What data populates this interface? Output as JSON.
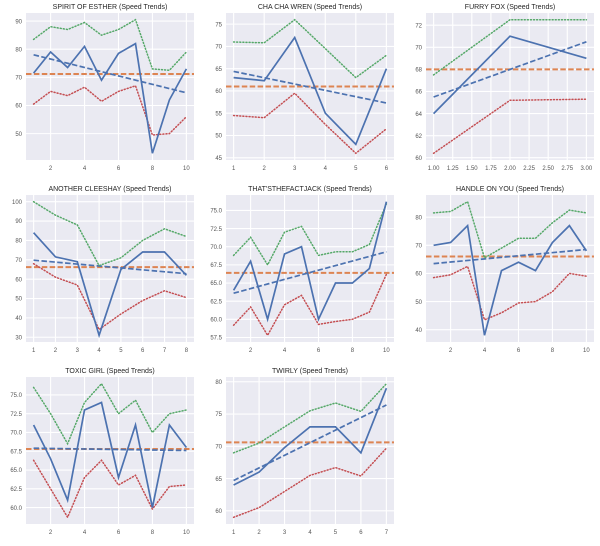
{
  "figure": {
    "layout": "3x3-grid-8-charts",
    "background": "#ffffff"
  },
  "palette": {
    "speed": "#4c72b0",
    "trend": "#4c72b0",
    "upper_bound": "#55a868",
    "lower_bound": "#c44e52",
    "average": "#dd8452",
    "plot_background": "#eaeaf2",
    "gridline": "#ffffff",
    "title_text": "#262626",
    "tick_text": "#555555"
  },
  "chart_data": [
    {
      "type": "line",
      "title": "SPIRIT OF ESTHER (Speed Trends)",
      "x": [
        1,
        2,
        3,
        4,
        5,
        6,
        7,
        8,
        9,
        10
      ],
      "xticks": {
        "values": [
          2,
          4,
          6,
          8,
          10
        ],
        "labels": [
          "2",
          "4",
          "6",
          "8",
          "10"
        ]
      },
      "yticks": {
        "values": [
          50,
          60,
          70,
          80,
          90
        ],
        "labels": [
          "50",
          "60",
          "70",
          "80",
          "90"
        ]
      },
      "series": [
        {
          "name": "speed",
          "style": "solid",
          "color": "speed",
          "values": [
            71.5,
            79,
            73.5,
            81,
            69,
            78.5,
            82,
            43,
            62,
            73
          ]
        },
        {
          "name": "trend",
          "style": "dashed",
          "color": "trend",
          "endpoints": [
            78,
            64.5
          ]
        },
        {
          "name": "upper-bound",
          "style": "dotted",
          "color": "upper_bound",
          "values": [
            83.5,
            88,
            87,
            89.5,
            85,
            87,
            90.5,
            73,
            72.5,
            79
          ]
        },
        {
          "name": "lower-bound",
          "style": "dotted",
          "color": "lower_bound",
          "values": [
            60.5,
            65,
            63.5,
            66.5,
            61.5,
            65,
            67,
            49.5,
            50,
            56
          ]
        },
        {
          "name": "average",
          "style": "dashed",
          "color": "average",
          "constant": 71.2
        }
      ]
    },
    {
      "type": "line",
      "title": "CHA CHA WREN (Speed Trends)",
      "x": [
        1,
        2,
        3,
        4,
        5,
        6
      ],
      "xticks": {
        "values": [
          1,
          2,
          3,
          4,
          5,
          6
        ],
        "labels": [
          "1",
          "2",
          "3",
          "4",
          "5",
          "6"
        ]
      },
      "yticks": {
        "values": [
          45,
          50,
          55,
          60,
          65,
          70,
          75
        ],
        "labels": [
          "45",
          "50",
          "55",
          "60",
          "65",
          "70",
          "75"
        ]
      },
      "series": [
        {
          "name": "speed",
          "style": "solid",
          "color": "speed",
          "values": [
            63,
            62.3,
            72,
            55,
            48,
            65
          ]
        },
        {
          "name": "trend",
          "style": "dashed",
          "color": "trend",
          "endpoints": [
            64.4,
            57.3
          ]
        },
        {
          "name": "upper-bound",
          "style": "dotted",
          "color": "upper_bound",
          "values": [
            71,
            70.8,
            76,
            69.5,
            63,
            68
          ]
        },
        {
          "name": "lower-bound",
          "style": "dotted",
          "color": "lower_bound",
          "values": [
            54.5,
            54,
            59.5,
            52.5,
            46,
            51.5
          ]
        },
        {
          "name": "average",
          "style": "dashed",
          "color": "average",
          "constant": 61
        }
      ]
    },
    {
      "type": "line",
      "title": "FURRY FOX (Speed Trends)",
      "x": [
        1,
        2,
        3
      ],
      "xticks": {
        "values": [
          1,
          1.25,
          1.5,
          1.75,
          2,
          2.25,
          2.5,
          2.75,
          3
        ],
        "labels": [
          "1.00",
          "1.25",
          "1.50",
          "1.75",
          "2.00",
          "2.25",
          "2.50",
          "2.75",
          "3.00"
        ]
      },
      "yticks": {
        "values": [
          60,
          62,
          64,
          66,
          68,
          70,
          72
        ],
        "labels": [
          "60",
          "62",
          "64",
          "66",
          "68",
          "70",
          "72"
        ]
      },
      "series": [
        {
          "name": "speed",
          "style": "solid",
          "color": "speed",
          "values": [
            64,
            71,
            69
          ]
        },
        {
          "name": "trend",
          "style": "dashed",
          "color": "trend",
          "endpoints": [
            65.5,
            70.5
          ]
        },
        {
          "name": "upper-bound",
          "style": "dotted",
          "color": "upper_bound",
          "values": [
            67.5,
            72.5,
            72.5
          ]
        },
        {
          "name": "lower-bound",
          "style": "dotted",
          "color": "lower_bound",
          "values": [
            60.4,
            65.2,
            65.3
          ]
        },
        {
          "name": "average",
          "style": "dashed",
          "color": "average",
          "constant": 68
        }
      ]
    },
    {
      "type": "line",
      "title": "ANOTHER CLEESHAY (Speed Trends)",
      "x": [
        1,
        2,
        3,
        4,
        5,
        6,
        7,
        8
      ],
      "xticks": {
        "values": [
          1,
          2,
          3,
          4,
          5,
          6,
          7,
          8
        ],
        "labels": [
          "1",
          "2",
          "3",
          "4",
          "5",
          "6",
          "7",
          "8"
        ]
      },
      "yticks": {
        "values": [
          30,
          40,
          50,
          60,
          70,
          80,
          90,
          100
        ],
        "labels": [
          "30",
          "40",
          "50",
          "60",
          "70",
          "80",
          "90",
          "100"
        ]
      },
      "series": [
        {
          "name": "speed",
          "style": "solid",
          "color": "speed",
          "values": [
            84,
            71.5,
            69,
            31,
            65,
            74,
            74,
            62
          ]
        },
        {
          "name": "trend",
          "style": "dashed",
          "color": "trend",
          "endpoints": [
            69.8,
            62.8
          ]
        },
        {
          "name": "upper-bound",
          "style": "dotted",
          "color": "upper_bound",
          "values": [
            100,
            93,
            88,
            67,
            71,
            80,
            86,
            82
          ]
        },
        {
          "name": "lower-bound",
          "style": "dotted",
          "color": "lower_bound",
          "values": [
            68,
            61,
            57,
            34,
            42,
            49,
            54,
            50.5
          ]
        },
        {
          "name": "average",
          "style": "dashed",
          "color": "average",
          "constant": 66.2
        }
      ]
    },
    {
      "type": "line",
      "title": "THAT'STHEFACTJACK (Speed Trends)",
      "x": [
        1,
        2,
        3,
        4,
        5,
        6,
        7,
        8,
        9,
        10
      ],
      "xticks": {
        "values": [
          2,
          4,
          6,
          8,
          10
        ],
        "labels": [
          "2",
          "4",
          "6",
          "8",
          "10"
        ]
      },
      "yticks": {
        "values": [
          57.5,
          60,
          62.5,
          65,
          67.5,
          70,
          72.5,
          75
        ],
        "labels": [
          "57.5",
          "60.0",
          "62.5",
          "65.0",
          "67.5",
          "70.0",
          "72.5",
          "75.0"
        ]
      },
      "series": [
        {
          "name": "speed",
          "style": "solid",
          "color": "speed",
          "values": [
            64,
            68,
            60,
            69,
            70,
            60,
            65,
            65,
            67,
            76.2
          ]
        },
        {
          "name": "trend",
          "style": "dashed",
          "color": "trend",
          "endpoints": [
            63.6,
            69.3
          ]
        },
        {
          "name": "upper-bound",
          "style": "dotted",
          "color": "upper_bound",
          "values": [
            68.8,
            71.3,
            67.5,
            72,
            72.8,
            68.8,
            69.3,
            69.3,
            70.3,
            75.9
          ]
        },
        {
          "name": "lower-bound",
          "style": "dotted",
          "color": "lower_bound",
          "values": [
            59.2,
            61.7,
            57.8,
            62,
            63.3,
            59.3,
            59.7,
            60,
            61,
            66.2
          ]
        },
        {
          "name": "average",
          "style": "dashed",
          "color": "average",
          "constant": 66.4
        }
      ]
    },
    {
      "type": "line",
      "title": "HANDLE ON YOU (Speed Trends)",
      "x": [
        1,
        2,
        3,
        4,
        5,
        6,
        7,
        8,
        9,
        10
      ],
      "xticks": {
        "values": [
          2,
          4,
          6,
          8,
          10
        ],
        "labels": [
          "2",
          "4",
          "6",
          "8",
          "10"
        ]
      },
      "yticks": {
        "values": [
          40,
          50,
          60,
          70,
          80
        ],
        "labels": [
          "40",
          "50",
          "60",
          "70",
          "80"
        ]
      },
      "series": [
        {
          "name": "speed",
          "style": "solid",
          "color": "speed",
          "values": [
            70,
            71,
            77,
            38,
            61,
            64,
            61,
            71,
            77,
            68
          ]
        },
        {
          "name": "trend",
          "style": "dashed",
          "color": "trend",
          "endpoints": [
            63.5,
            68.5
          ]
        },
        {
          "name": "upper-bound",
          "style": "dotted",
          "color": "upper_bound",
          "values": [
            81.5,
            82,
            85.5,
            65.5,
            69,
            72.5,
            72.5,
            78,
            82.5,
            81.5
          ]
        },
        {
          "name": "lower-bound",
          "style": "dotted",
          "color": "lower_bound",
          "values": [
            58.5,
            59.5,
            62.5,
            43.5,
            46,
            49.5,
            50,
            53.5,
            60,
            59
          ]
        },
        {
          "name": "average",
          "style": "dashed",
          "color": "average",
          "constant": 66
        }
      ]
    },
    {
      "type": "line",
      "title": "TOXIC GIRL (Speed Trends)",
      "x": [
        1,
        2,
        3,
        4,
        5,
        6,
        7,
        8,
        9,
        10
      ],
      "xticks": {
        "values": [
          2,
          4,
          6,
          8,
          10
        ],
        "labels": [
          "2",
          "4",
          "6",
          "8",
          "10"
        ]
      },
      "yticks": {
        "values": [
          60,
          62.5,
          65,
          67.5,
          70,
          72.5,
          75
        ],
        "labels": [
          "60.0",
          "62.5",
          "65.0",
          "67.5",
          "70.0",
          "72.5",
          "75.0"
        ]
      },
      "series": [
        {
          "name": "speed",
          "style": "solid",
          "color": "speed",
          "values": [
            71,
            66.5,
            61,
            73,
            74,
            64,
            71,
            60,
            71,
            68
          ]
        },
        {
          "name": "trend",
          "style": "dashed",
          "color": "trend",
          "endpoints": [
            67.9,
            67.6
          ]
        },
        {
          "name": "upper-bound",
          "style": "dotted",
          "color": "upper_bound",
          "values": [
            76,
            72.5,
            68.5,
            74,
            76.5,
            72.5,
            74.3,
            70,
            72.5,
            73
          ]
        },
        {
          "name": "lower-bound",
          "style": "dotted",
          "color": "lower_bound",
          "values": [
            66.3,
            62.5,
            58.7,
            64,
            66.3,
            63,
            64.3,
            59.8,
            62.8,
            63
          ]
        },
        {
          "name": "average",
          "style": "dashed",
          "color": "average",
          "constant": 67.8
        }
      ]
    },
    {
      "type": "line",
      "title": "TWIRLY (Speed Trends)",
      "x": [
        1,
        2,
        3,
        4,
        5,
        6,
        7
      ],
      "xticks": {
        "values": [
          1,
          2,
          3,
          4,
          5,
          6,
          7
        ],
        "labels": [
          "1",
          "2",
          "3",
          "4",
          "5",
          "6",
          "7"
        ]
      },
      "yticks": {
        "values": [
          60,
          65,
          70,
          75,
          80
        ],
        "labels": [
          "60",
          "65",
          "70",
          "75",
          "80"
        ]
      },
      "series": [
        {
          "name": "speed",
          "style": "solid",
          "color": "speed",
          "values": [
            64,
            66,
            69.8,
            73,
            73,
            69,
            79
          ]
        },
        {
          "name": "trend",
          "style": "dashed",
          "color": "trend",
          "endpoints": [
            64.7,
            76.4
          ]
        },
        {
          "name": "upper-bound",
          "style": "dotted",
          "color": "upper_bound",
          "values": [
            69,
            70.5,
            73,
            75.5,
            76.7,
            75.4,
            79.7
          ]
        },
        {
          "name": "lower-bound",
          "style": "dotted",
          "color": "lower_bound",
          "values": [
            59,
            60.5,
            63,
            65.5,
            66.7,
            65.4,
            69.7
          ]
        },
        {
          "name": "average",
          "style": "dashed",
          "color": "average",
          "constant": 70.6
        }
      ]
    }
  ]
}
